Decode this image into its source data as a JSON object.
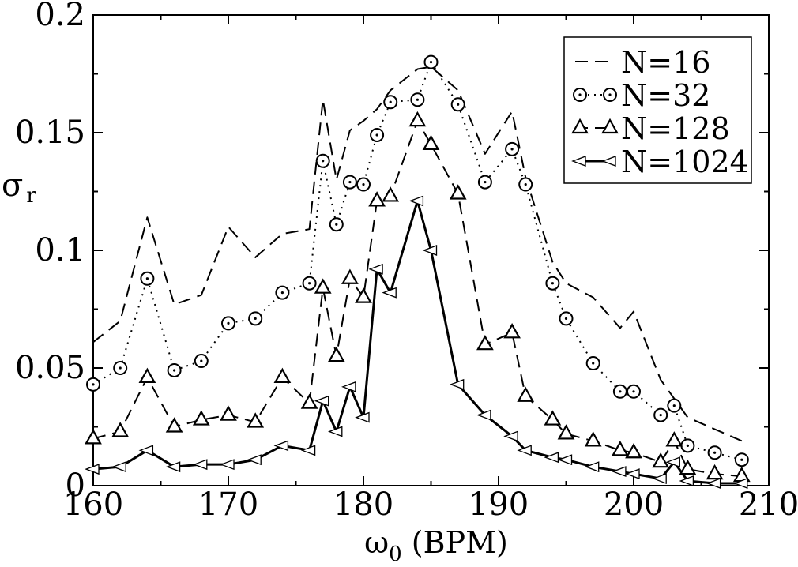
{
  "chart_data": {
    "type": "line",
    "xlabel": "ω0 (BPM)",
    "xlabel_main": "ω",
    "xlabel_sub": "0",
    "xlabel_rest": " (BPM)",
    "ylabel_main": "σ",
    "ylabel_sub": "r",
    "xlim": [
      160,
      210
    ],
    "ylim": [
      0,
      0.2
    ],
    "xticks": [
      160,
      170,
      180,
      190,
      200,
      210
    ],
    "xtick_labels": [
      "160",
      "170",
      "180",
      "190",
      "200",
      "210"
    ],
    "yticks": [
      0,
      0.05,
      0.1,
      0.15,
      0.2
    ],
    "ytick_labels": [
      "0",
      "0.05",
      "0.1",
      "0.15",
      "0.2"
    ],
    "grid": false,
    "legend_position": "top-right",
    "series": [
      {
        "name": "N=16",
        "line": "dashed",
        "marker": "none",
        "x": [
          160,
          162,
          164,
          166,
          168,
          170,
          172,
          174,
          176,
          177,
          178,
          179,
          180,
          181,
          182,
          184,
          185,
          187,
          189,
          191,
          192,
          194,
          195,
          197,
          199,
          200,
          202,
          204,
          206,
          208
        ],
        "y": [
          0.061,
          0.07,
          0.114,
          0.077,
          0.081,
          0.11,
          0.097,
          0.107,
          0.109,
          0.164,
          0.13,
          0.151,
          0.155,
          0.16,
          0.168,
          0.177,
          0.178,
          0.168,
          0.141,
          0.159,
          0.131,
          0.095,
          0.086,
          0.08,
          0.067,
          0.074,
          0.045,
          0.029,
          0.024,
          0.019
        ]
      },
      {
        "name": "N=32",
        "line": "dotted",
        "marker": "circle",
        "x": [
          160,
          162,
          164,
          166,
          168,
          170,
          172,
          174,
          176,
          177,
          178,
          179,
          180,
          181,
          182,
          184,
          185,
          187,
          189,
          191,
          192,
          194,
          195,
          197,
          199,
          200,
          202,
          203,
          204,
          206,
          208
        ],
        "y": [
          0.043,
          0.05,
          0.088,
          0.049,
          0.053,
          0.069,
          0.071,
          0.082,
          0.086,
          0.138,
          0.111,
          0.129,
          0.128,
          0.149,
          0.163,
          0.164,
          0.18,
          0.162,
          0.129,
          0.143,
          0.128,
          0.086,
          0.071,
          0.052,
          0.04,
          0.04,
          0.03,
          0.034,
          0.017,
          0.014,
          0.011
        ]
      },
      {
        "name": "N=128",
        "line": "dashed",
        "marker": "triangle-up",
        "x": [
          160,
          162,
          164,
          166,
          168,
          170,
          172,
          174,
          176,
          177,
          178,
          179,
          180,
          181,
          182,
          184,
          185,
          187,
          189,
          191,
          192,
          194,
          195,
          197,
          199,
          200,
          202,
          203,
          204,
          206,
          208
        ],
        "y": [
          0.02,
          0.023,
          0.046,
          0.025,
          0.028,
          0.03,
          0.027,
          0.046,
          0.035,
          0.084,
          0.055,
          0.088,
          0.08,
          0.121,
          0.123,
          0.155,
          0.145,
          0.124,
          0.06,
          0.065,
          0.038,
          0.028,
          0.022,
          0.019,
          0.015,
          0.014,
          0.01,
          0.019,
          0.007,
          0.005,
          0.004
        ]
      },
      {
        "name": "N=1024",
        "line": "solid",
        "marker": "triangle-left",
        "x": [
          160,
          162,
          164,
          166,
          168,
          170,
          172,
          174,
          176,
          177,
          178,
          179,
          180,
          181,
          182,
          184,
          185,
          187,
          189,
          191,
          192,
          194,
          195,
          197,
          199,
          200,
          202,
          203,
          204,
          206,
          208
        ],
        "y": [
          0.007,
          0.008,
          0.015,
          0.008,
          0.009,
          0.009,
          0.011,
          0.017,
          0.015,
          0.036,
          0.023,
          0.042,
          0.029,
          0.092,
          0.082,
          0.121,
          0.1,
          0.043,
          0.03,
          0.021,
          0.015,
          0.012,
          0.011,
          0.008,
          0.006,
          0.005,
          0.003,
          0.01,
          0.002,
          0.001,
          0.001
        ]
      }
    ]
  }
}
